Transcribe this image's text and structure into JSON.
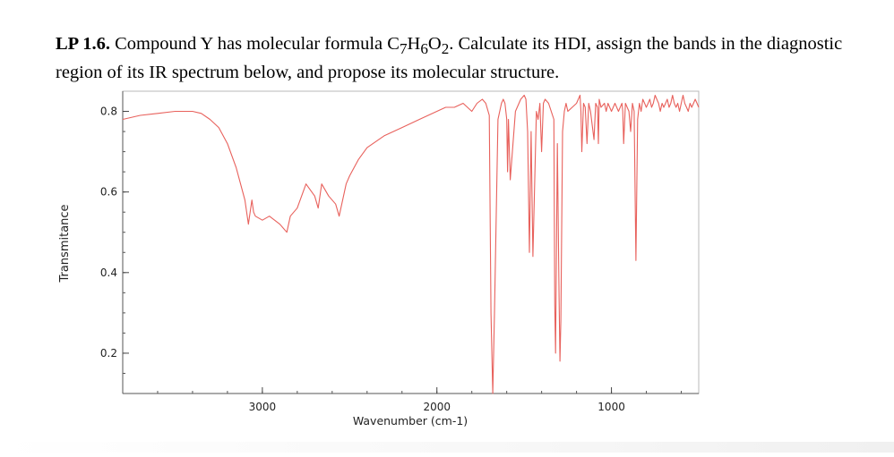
{
  "problem": {
    "label": "LP 1.6.",
    "text_a": " Compound Y has molecular formula C",
    "sub_c": "7",
    "text_h": "H",
    "sub_h": "6",
    "text_o": "O",
    "sub_o": "2",
    "text_b": ". Calculate its HDI, assign the bands in the diagnostic region of its IR spectrum below, and propose its molecular structure."
  },
  "chart_data": {
    "type": "line",
    "title": "",
    "xlabel": "Wavenumber (cm-1)",
    "ylabel": "Transmitance",
    "x_reversed": true,
    "xlim": [
      3800,
      500
    ],
    "ylim": [
      0.1,
      0.85
    ],
    "x_ticks": [
      3000,
      2000,
      1000
    ],
    "x_tick_labels": [
      "3000",
      "2000",
      "1000"
    ],
    "y_ticks": [
      0.8,
      0.6,
      0.4,
      0.2
    ],
    "y_tick_labels": [
      "0.8",
      "0.6",
      "0.4",
      "0.2"
    ],
    "grid": false,
    "line_color": "#e8615c",
    "series": [
      {
        "x": [
          3800,
          3700,
          3600,
          3500,
          3400,
          3350,
          3300,
          3250,
          3200,
          3150,
          3100,
          3080,
          3060,
          3050,
          3040,
          3000,
          2960,
          2900,
          2860,
          2840,
          2800,
          2750,
          2700,
          2680,
          2660,
          2620,
          2580,
          2560,
          2540,
          2520,
          2500,
          2450,
          2400,
          2300,
          2200,
          2100,
          2000,
          1950,
          1900,
          1850,
          1800,
          1770,
          1740,
          1720,
          1700,
          1690,
          1680,
          1670,
          1650,
          1630,
          1620,
          1610,
          1600,
          1595,
          1590,
          1580,
          1550,
          1520,
          1500,
          1490,
          1480,
          1470,
          1460,
          1450,
          1430,
          1420,
          1410,
          1400,
          1390,
          1380,
          1360,
          1330,
          1325,
          1320,
          1310,
          1300,
          1295,
          1290,
          1280,
          1270,
          1260,
          1250,
          1200,
          1180,
          1175,
          1170,
          1160,
          1150,
          1140,
          1130,
          1120,
          1100,
          1090,
          1080,
          1075,
          1070,
          1060,
          1040,
          1030,
          1020,
          1000,
          980,
          960,
          940,
          935,
          930,
          920,
          900,
          890,
          880,
          870,
          860,
          850,
          840,
          830,
          820,
          810,
          800,
          790,
          780,
          770,
          760,
          750,
          740,
          730,
          720,
          710,
          700,
          690,
          680,
          670,
          660,
          650,
          640,
          630,
          620,
          610,
          600,
          590,
          580,
          570,
          560,
          550,
          540,
          530,
          520,
          510,
          500
        ],
        "y": [
          0.78,
          0.79,
          0.795,
          0.8,
          0.8,
          0.795,
          0.78,
          0.76,
          0.72,
          0.66,
          0.58,
          0.52,
          0.58,
          0.55,
          0.54,
          0.53,
          0.54,
          0.52,
          0.5,
          0.54,
          0.56,
          0.62,
          0.59,
          0.56,
          0.62,
          0.59,
          0.57,
          0.54,
          0.58,
          0.62,
          0.64,
          0.68,
          0.71,
          0.74,
          0.76,
          0.78,
          0.8,
          0.81,
          0.81,
          0.82,
          0.8,
          0.82,
          0.83,
          0.82,
          0.79,
          0.3,
          0.1,
          0.3,
          0.78,
          0.82,
          0.83,
          0.82,
          0.78,
          0.65,
          0.78,
          0.63,
          0.8,
          0.83,
          0.84,
          0.83,
          0.75,
          0.45,
          0.75,
          0.44,
          0.8,
          0.78,
          0.82,
          0.7,
          0.82,
          0.83,
          0.82,
          0.78,
          0.32,
          0.2,
          0.72,
          0.34,
          0.18,
          0.28,
          0.75,
          0.8,
          0.82,
          0.8,
          0.82,
          0.84,
          0.8,
          0.7,
          0.82,
          0.81,
          0.72,
          0.82,
          0.8,
          0.73,
          0.82,
          0.81,
          0.72,
          0.83,
          0.81,
          0.82,
          0.8,
          0.82,
          0.8,
          0.82,
          0.8,
          0.82,
          0.8,
          0.72,
          0.82,
          0.8,
          0.75,
          0.82,
          0.8,
          0.43,
          0.78,
          0.82,
          0.8,
          0.83,
          0.82,
          0.81,
          0.82,
          0.83,
          0.81,
          0.82,
          0.84,
          0.83,
          0.82,
          0.8,
          0.82,
          0.81,
          0.82,
          0.83,
          0.81,
          0.82,
          0.84,
          0.82,
          0.81,
          0.82,
          0.8,
          0.82,
          0.84,
          0.82,
          0.81,
          0.8,
          0.82,
          0.81,
          0.82,
          0.83,
          0.82,
          0.81
        ]
      }
    ]
  }
}
